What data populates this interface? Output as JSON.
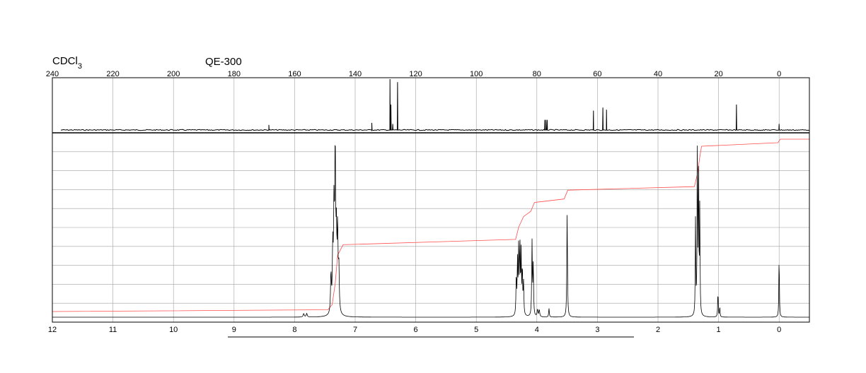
{
  "chart_data": [
    {
      "type": "line",
      "panel": "13C",
      "solvent": {
        "base": "CDCl",
        "subscript": "3"
      },
      "instrument": "QE-300",
      "x_ticks": [
        240,
        220,
        200,
        180,
        160,
        140,
        120,
        100,
        80,
        60,
        40,
        20,
        0
      ],
      "xlim": [
        240,
        -10
      ],
      "grid": true,
      "peaks": [
        {
          "ppm": 168.5,
          "intensity": 0.1
        },
        {
          "ppm": 134.5,
          "intensity": 0.14
        },
        {
          "ppm": 128.5,
          "intensity": 1.0
        },
        {
          "ppm": 128.2,
          "intensity": 0.5
        },
        {
          "ppm": 127.6,
          "intensity": 0.12
        },
        {
          "ppm": 126.0,
          "intensity": 0.94
        },
        {
          "ppm": 77.4,
          "intensity": 0.2
        },
        {
          "ppm": 77.0,
          "intensity": 0.2
        },
        {
          "ppm": 76.6,
          "intensity": 0.2
        },
        {
          "ppm": 61.3,
          "intensity": 0.38
        },
        {
          "ppm": 58.2,
          "intensity": 0.44
        },
        {
          "ppm": 57.0,
          "intensity": 0.4
        },
        {
          "ppm": 14.1,
          "intensity": 0.5
        },
        {
          "ppm": 0.0,
          "intensity": 0.12
        }
      ]
    },
    {
      "type": "line",
      "panel": "1H",
      "x_ticks": [
        12,
        11,
        10,
        9,
        8,
        7,
        6,
        5,
        4,
        3,
        2,
        1,
        0
      ],
      "xlim": [
        12,
        -0.5
      ],
      "grid": true,
      "peaks": [
        {
          "ppm": 7.85,
          "intensity": 0.02,
          "w": 0.01
        },
        {
          "ppm": 7.8,
          "intensity": 0.02,
          "w": 0.01
        },
        {
          "ppm": 7.4,
          "intensity": 0.22,
          "w": 0.008
        },
        {
          "ppm": 7.37,
          "intensity": 0.35,
          "w": 0.008
        },
        {
          "ppm": 7.35,
          "intensity": 0.55,
          "w": 0.008
        },
        {
          "ppm": 7.33,
          "intensity": 0.9,
          "w": 0.008
        },
        {
          "ppm": 7.31,
          "intensity": 0.4,
          "w": 0.008
        },
        {
          "ppm": 7.29,
          "intensity": 0.45,
          "w": 0.008
        },
        {
          "ppm": 7.27,
          "intensity": 0.25,
          "w": 0.008
        },
        {
          "ppm": 4.34,
          "intensity": 0.22,
          "w": 0.006
        },
        {
          "ppm": 4.32,
          "intensity": 0.3,
          "w": 0.006
        },
        {
          "ppm": 4.3,
          "intensity": 0.38,
          "w": 0.006
        },
        {
          "ppm": 4.28,
          "intensity": 0.4,
          "w": 0.006
        },
        {
          "ppm": 4.26,
          "intensity": 0.34,
          "w": 0.006
        },
        {
          "ppm": 4.24,
          "intensity": 0.26,
          "w": 0.006
        },
        {
          "ppm": 4.22,
          "intensity": 0.18,
          "w": 0.006
        },
        {
          "ppm": 4.08,
          "intensity": 0.42,
          "w": 0.006
        },
        {
          "ppm": 4.06,
          "intensity": 0.3,
          "w": 0.006
        },
        {
          "ppm": 3.99,
          "intensity": 0.04,
          "w": 0.008
        },
        {
          "ppm": 3.96,
          "intensity": 0.04,
          "w": 0.008
        },
        {
          "ppm": 3.8,
          "intensity": 0.05,
          "w": 0.006
        },
        {
          "ppm": 3.5,
          "intensity": 0.6,
          "w": 0.006
        },
        {
          "ppm": 1.38,
          "intensity": 0.55,
          "w": 0.005
        },
        {
          "ppm": 1.35,
          "intensity": 1.0,
          "w": 0.005
        },
        {
          "ppm": 1.33,
          "intensity": 0.85,
          "w": 0.005
        },
        {
          "ppm": 1.31,
          "intensity": 0.6,
          "w": 0.005
        },
        {
          "ppm": 1.01,
          "intensity": 0.15,
          "w": 0.005
        },
        {
          "ppm": 0.98,
          "intensity": 0.06,
          "w": 0.005
        },
        {
          "ppm": 0.0,
          "intensity": 0.36,
          "w": 0.005
        }
      ],
      "integral": [
        {
          "ppm": 12.0,
          "level": 0.02
        },
        {
          "ppm": 7.45,
          "level": 0.03
        },
        {
          "ppm": 7.38,
          "level": 0.06
        },
        {
          "ppm": 7.33,
          "level": 0.18
        },
        {
          "ppm": 7.29,
          "level": 0.34
        },
        {
          "ppm": 7.2,
          "level": 0.4
        },
        {
          "ppm": 4.35,
          "level": 0.43
        },
        {
          "ppm": 4.3,
          "level": 0.5
        },
        {
          "ppm": 4.22,
          "level": 0.56
        },
        {
          "ppm": 4.1,
          "level": 0.59
        },
        {
          "ppm": 4.04,
          "level": 0.64
        },
        {
          "ppm": 3.55,
          "level": 0.66
        },
        {
          "ppm": 3.49,
          "level": 0.71
        },
        {
          "ppm": 1.4,
          "level": 0.73
        },
        {
          "ppm": 1.35,
          "level": 0.8
        },
        {
          "ppm": 1.31,
          "level": 0.9
        },
        {
          "ppm": 1.28,
          "level": 0.96
        },
        {
          "ppm": 0.02,
          "level": 0.98
        },
        {
          "ppm": -0.02,
          "level": 1.0
        },
        {
          "ppm": -0.5,
          "level": 1.0
        }
      ]
    }
  ],
  "colors": {
    "spectrum": "#000000",
    "integral": "#ff4d4d",
    "grid": "#a0a0a0"
  }
}
